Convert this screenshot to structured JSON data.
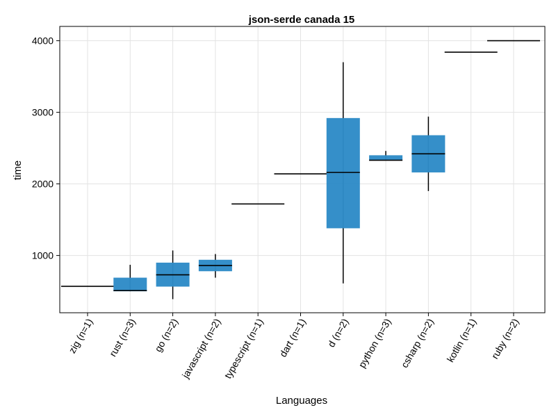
{
  "chart_data": {
    "type": "box",
    "title": "json-serde canada 15",
    "xlabel": "Languages",
    "ylabel": "time",
    "ylim": [
      200,
      4200
    ],
    "yticks": [
      1000,
      2000,
      3000,
      4000
    ],
    "grid": true,
    "legend": "none",
    "box_color": "#2E8BC7",
    "categories": [
      {
        "label": "zig (n=1)",
        "min": 570,
        "q1": 570,
        "median": 570,
        "q3": 570,
        "max": 570
      },
      {
        "label": "rust (n=3)",
        "min": 500,
        "q1": 500,
        "median": 510,
        "q3": 690,
        "max": 870
      },
      {
        "label": "go (n=2)",
        "min": 390,
        "q1": 565,
        "median": 730,
        "q3": 900,
        "max": 1070
      },
      {
        "label": "javascript (n=2)",
        "min": 690,
        "q1": 780,
        "median": 860,
        "q3": 940,
        "max": 1020
      },
      {
        "label": "typescript (n=1)",
        "min": 1720,
        "q1": 1720,
        "median": 1720,
        "q3": 1720,
        "max": 1720
      },
      {
        "label": "dart (n=1)",
        "min": 2140,
        "q1": 2140,
        "median": 2140,
        "q3": 2140,
        "max": 2140
      },
      {
        "label": "d (n=2)",
        "min": 610,
        "q1": 1380,
        "median": 2160,
        "q3": 2920,
        "max": 3700
      },
      {
        "label": "python (n=3)",
        "min": 2330,
        "q1": 2330,
        "median": 2330,
        "q3": 2400,
        "max": 2460
      },
      {
        "label": "csharp (n=2)",
        "min": 1900,
        "q1": 2160,
        "median": 2420,
        "q3": 2680,
        "max": 2940
      },
      {
        "label": "kotlin (n=1)",
        "min": 3840,
        "q1": 3840,
        "median": 3840,
        "q3": 3840,
        "max": 3840
      },
      {
        "label": "ruby (n=2)",
        "min": 4000,
        "q1": 4000,
        "median": 4000,
        "q3": 4000,
        "max": 4000
      }
    ]
  }
}
